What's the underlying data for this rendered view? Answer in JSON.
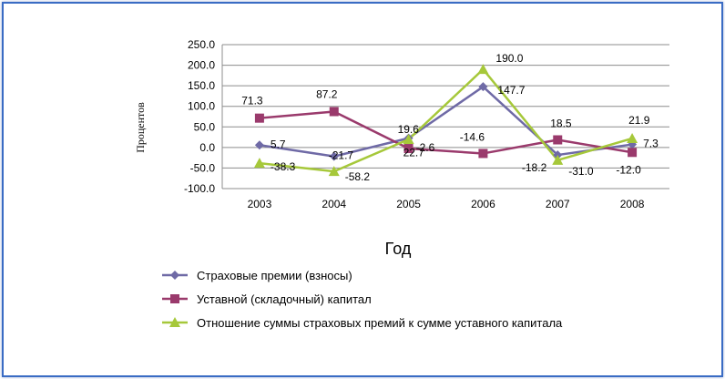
{
  "chart_data": {
    "type": "line",
    "xlabel": "Год",
    "ylabel": "Процентов",
    "categories": [
      "2003",
      "2004",
      "2005",
      "2006",
      "2007",
      "2008"
    ],
    "ylim": [
      -100,
      250
    ],
    "yticks": [
      "250.0",
      "200.0",
      "150.0",
      "100.0",
      "50.0",
      "0.0",
      "-50.0",
      "-100.0"
    ],
    "ytick_values": [
      250,
      200,
      150,
      100,
      50,
      0,
      -50,
      -100
    ],
    "grid": true,
    "legend_position": "bottom",
    "series": [
      {
        "name": "Страховые премии (взносы)",
        "values": [
          5.7,
          -21.7,
          22.7,
          147.7,
          -18.2,
          7.3
        ],
        "labels": [
          "5.7",
          "-21.7",
          "22.7",
          "147.7",
          "-18.2",
          "7.3"
        ],
        "color": "#6f6aa6",
        "marker": "diamond"
      },
      {
        "name": "Уставной (складочный) капитал",
        "values": [
          71.3,
          87.2,
          -2.6,
          -14.6,
          18.5,
          -12.0
        ],
        "labels": [
          "71.3",
          "87.2",
          "-2.6",
          "-14.6",
          "18.5",
          "-12.0"
        ],
        "color": "#9a3a6c",
        "marker": "square"
      },
      {
        "name": "Отношение суммы страховых премий к сумме уставного капитала",
        "values": [
          -38.3,
          -58.2,
          19.6,
          190.0,
          -31.0,
          21.9
        ],
        "labels": [
          "-38.3",
          "-58.2",
          "19.6",
          "190.0",
          "-31.0",
          "21.9"
        ],
        "color": "#a6c83a",
        "marker": "triangle"
      }
    ]
  }
}
